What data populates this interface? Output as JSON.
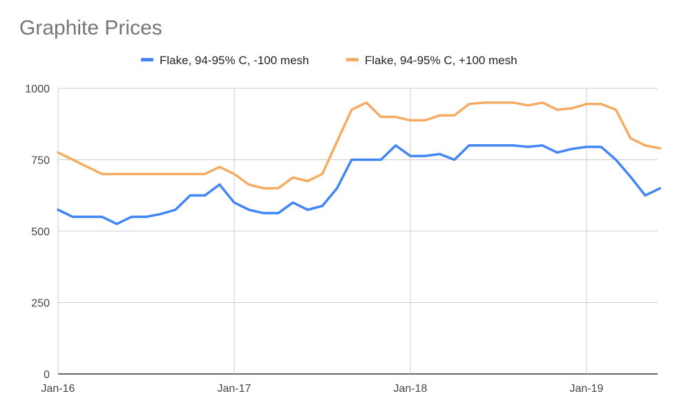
{
  "chart_data": {
    "type": "line",
    "title": "Graphite Prices",
    "xlabel": "",
    "ylabel": "",
    "x": [
      "2016-01",
      "2016-02",
      "2016-03",
      "2016-04",
      "2016-05",
      "2016-06",
      "2016-07",
      "2016-08",
      "2016-09",
      "2016-10",
      "2016-11",
      "2016-12",
      "2017-01",
      "2017-02",
      "2017-03",
      "2017-04",
      "2017-05",
      "2017-06",
      "2017-07",
      "2017-08",
      "2017-09",
      "2017-10",
      "2017-11",
      "2017-12",
      "2018-01",
      "2018-02",
      "2018-03",
      "2018-04",
      "2018-05",
      "2018-06",
      "2018-07",
      "2018-08",
      "2018-09",
      "2018-10",
      "2018-11",
      "2018-12",
      "2019-01",
      "2019-02",
      "2019-03",
      "2019-04",
      "2019-05",
      "2019-06"
    ],
    "series": [
      {
        "name": "Flake, 94-95% C, -100 mesh",
        "color": "#4285f4",
        "values": [
          575,
          550,
          550,
          550,
          525,
          550,
          550,
          560,
          575,
          625,
          625,
          663,
          600,
          575,
          563,
          563,
          600,
          575,
          588,
          650,
          750,
          750,
          750,
          800,
          763,
          763,
          770,
          750,
          800,
          800,
          800,
          800,
          795,
          800,
          775,
          788,
          795,
          795,
          750,
          690,
          625,
          650
        ]
      },
      {
        "name": "Flake, 94-95% C, +100 mesh",
        "color": "#f4ac62",
        "values": [
          775,
          750,
          725,
          700,
          700,
          700,
          700,
          700,
          700,
          700,
          700,
          725,
          700,
          663,
          650,
          650,
          688,
          675,
          700,
          813,
          925,
          950,
          900,
          900,
          888,
          888,
          905,
          905,
          945,
          950,
          950,
          950,
          940,
          950,
          925,
          930,
          945,
          945,
          925,
          825,
          800,
          790
        ]
      }
    ],
    "x_ticks": [
      "Jan-16",
      "Jan-17",
      "Jan-18",
      "Jan-19"
    ],
    "y_ticks": [
      "0",
      "250",
      "500",
      "750",
      "1000"
    ],
    "ylim": [
      0,
      1000
    ],
    "grid": true,
    "legend_position": "top"
  }
}
